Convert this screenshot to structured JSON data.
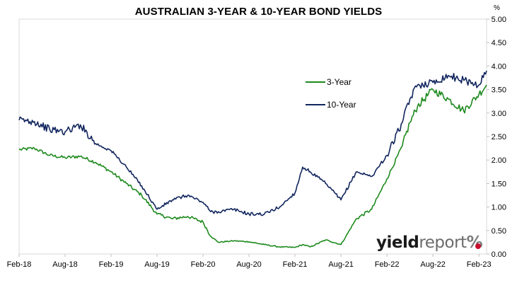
{
  "chart_data": {
    "type": "line",
    "title": "AUSTRALIAN 3-YEAR & 10-YEAR BOND YIELDS",
    "y_unit": "%",
    "ylim": [
      0,
      5
    ],
    "yticks": [
      "0.00",
      "0.50",
      "1.00",
      "1.50",
      "2.00",
      "2.50",
      "3.00",
      "3.50",
      "4.00",
      "4.50",
      "5.00"
    ],
    "x_range": [
      "2018-02",
      "2023-03"
    ],
    "xtick_labels": [
      "Feb-18",
      "Aug-18",
      "Feb-19",
      "Aug-19",
      "Feb-20",
      "Aug-20",
      "Feb-21",
      "Aug-21",
      "Feb-22",
      "Aug-22",
      "Feb-23"
    ],
    "x": [
      "2018-02",
      "2018-04",
      "2018-06",
      "2018-08",
      "2018-10",
      "2018-12",
      "2019-02",
      "2019-04",
      "2019-06",
      "2019-08",
      "2019-10",
      "2019-12",
      "2020-02",
      "2020-03",
      "2020-04",
      "2020-06",
      "2020-08",
      "2020-10",
      "2020-12",
      "2021-02",
      "2021-03",
      "2021-04",
      "2021-06",
      "2021-08",
      "2021-10",
      "2021-12",
      "2022-02",
      "2022-04",
      "2022-05",
      "2022-06",
      "2022-08",
      "2022-10",
      "2022-12",
      "2023-02",
      "2023-03"
    ],
    "series": [
      {
        "name": "3-Year",
        "color": "#1e8a1e",
        "values": [
          2.22,
          2.25,
          2.1,
          2.05,
          2.08,
          1.95,
          1.75,
          1.5,
          1.25,
          0.85,
          0.75,
          0.8,
          0.68,
          0.38,
          0.25,
          0.28,
          0.26,
          0.2,
          0.15,
          0.14,
          0.2,
          0.15,
          0.3,
          0.2,
          0.75,
          0.95,
          1.6,
          2.3,
          2.8,
          3.15,
          3.5,
          3.3,
          3.05,
          3.4,
          3.6
        ]
      },
      {
        "name": "10-Year",
        "color": "#12265e",
        "values": [
          2.85,
          2.82,
          2.65,
          2.6,
          2.75,
          2.35,
          2.2,
          1.85,
          1.45,
          0.95,
          1.15,
          1.25,
          1.1,
          0.9,
          0.9,
          0.95,
          0.85,
          0.85,
          1.0,
          1.3,
          1.85,
          1.75,
          1.5,
          1.15,
          1.75,
          1.65,
          2.1,
          2.8,
          3.3,
          3.6,
          3.65,
          3.8,
          3.7,
          3.6,
          3.9
        ]
      }
    ],
    "legend": "upper-center",
    "grid": false
  },
  "brand": {
    "part1": "yield",
    "part2": "report",
    "part3": "%"
  }
}
